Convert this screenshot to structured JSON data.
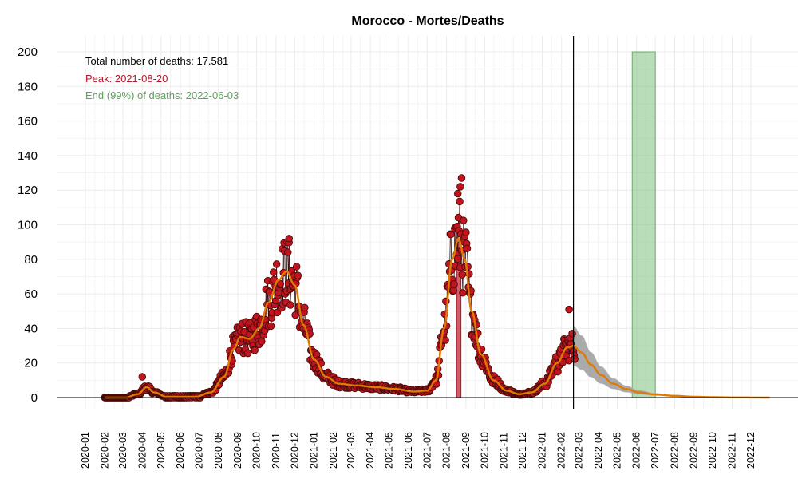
{
  "chart_data": {
    "type": "line",
    "title": "Morocco - Mortes/Deaths",
    "xlabel": "",
    "ylabel": "",
    "ylim": [
      0,
      200
    ],
    "y_ticks": [
      "0",
      "20",
      "40",
      "60",
      "80",
      "100",
      "120",
      "140",
      "160",
      "180",
      "200"
    ],
    "x_ticks": [
      "2020-01",
      "2020-02",
      "2020-03",
      "2020-04",
      "2020-05",
      "2020-06",
      "2020-07",
      "2020-08",
      "2020-09",
      "2020-10",
      "2020-11",
      "2020-12",
      "2021-01",
      "2021-02",
      "2021-03",
      "2021-04",
      "2021-05",
      "2021-06",
      "2021-07",
      "2021-08",
      "2021-09",
      "2021-10",
      "2021-11",
      "2021-12",
      "2022-01",
      "2022-02",
      "2022-03",
      "2022-04",
      "2022-05",
      "2022-06",
      "2022-07",
      "2022-08",
      "2022-09",
      "2022-10",
      "2022-11",
      "2022-12"
    ],
    "annotations": {
      "total": "Total number of deaths: 17.581",
      "peak": "Peak: 2021-08-20",
      "end": "End (99%) of deaths: 2022-06-03"
    },
    "colors": {
      "points": "#c0151e",
      "point_stroke": "#4a0a0a",
      "smooth": "#e07b00",
      "peak_bar": "#c9414f",
      "end_band": "#7fbf7f",
      "forecast": "#a9a9a9",
      "peak_text": "#b2182b",
      "end_text": "#5f9f5f"
    },
    "current_date": "2022-02-20",
    "peak_band": [
      "2021-08-17",
      "2021-08-24"
    ],
    "end_band": [
      "2022-05-25",
      "2022-07-01"
    ],
    "series": [
      {
        "kind": "daily-points",
        "smooth_knots": [
          [
            "2020-01-31",
            0
          ],
          [
            "2020-03-05",
            0
          ],
          [
            "2020-03-25",
            2
          ],
          [
            "2020-04-08",
            6
          ],
          [
            "2020-04-20",
            3
          ],
          [
            "2020-05-10",
            0.5
          ],
          [
            "2020-06-25",
            0.5
          ],
          [
            "2020-07-20",
            3
          ],
          [
            "2020-08-10",
            12
          ],
          [
            "2020-08-25",
            28
          ],
          [
            "2020-09-05",
            35
          ],
          [
            "2020-09-20",
            34
          ],
          [
            "2020-10-05",
            40
          ],
          [
            "2020-10-20",
            55
          ],
          [
            "2020-11-05",
            68
          ],
          [
            "2020-11-18",
            73
          ],
          [
            "2020-12-01",
            65
          ],
          [
            "2020-12-15",
            42
          ],
          [
            "2021-01-01",
            22
          ],
          [
            "2021-01-20",
            12
          ],
          [
            "2021-02-10",
            8
          ],
          [
            "2021-03-10",
            7
          ],
          [
            "2021-04-10",
            6
          ],
          [
            "2021-05-10",
            5
          ],
          [
            "2021-06-10",
            3.5
          ],
          [
            "2021-07-01",
            4
          ],
          [
            "2021-07-15",
            10
          ],
          [
            "2021-07-28",
            40
          ],
          [
            "2021-08-10",
            80
          ],
          [
            "2021-08-20",
            92
          ],
          [
            "2021-08-30",
            80
          ],
          [
            "2021-09-10",
            50
          ],
          [
            "2021-09-25",
            25
          ],
          [
            "2021-10-15",
            10
          ],
          [
            "2021-11-05",
            4
          ],
          [
            "2021-11-25",
            2
          ],
          [
            "2021-12-15",
            3
          ],
          [
            "2022-01-05",
            8
          ],
          [
            "2022-01-25",
            20
          ],
          [
            "2022-02-10",
            29
          ],
          [
            "2022-02-20",
            30
          ]
        ]
      },
      {
        "kind": "forecast",
        "knots": [
          [
            "2022-02-20",
            30
          ],
          [
            "2022-03-05",
            26
          ],
          [
            "2022-03-20",
            19
          ],
          [
            "2022-04-05",
            13
          ],
          [
            "2022-04-25",
            8
          ],
          [
            "2022-05-15",
            5
          ],
          [
            "2022-06-05",
            3
          ],
          [
            "2022-07-01",
            1.8
          ],
          [
            "2022-08-01",
            1
          ],
          [
            "2022-09-01",
            0.5
          ],
          [
            "2022-10-01",
            0.25
          ],
          [
            "2022-11-01",
            0.1
          ],
          [
            "2022-12-31",
            0
          ]
        ]
      }
    ]
  }
}
